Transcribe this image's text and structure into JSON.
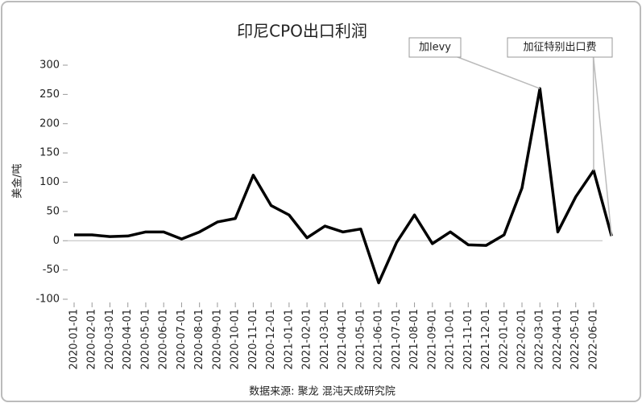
{
  "chart_data": {
    "type": "line",
    "title": "印尼CPO出口利润",
    "y_label": "美金/吨",
    "source": "数据来源: 聚龙 混沌天成研究院",
    "annotations": [
      "加levy",
      "加征特别出口费"
    ],
    "categories": [
      "2020-01-01",
      "2020-02-01",
      "2020-03-01",
      "2020-04-01",
      "2020-05-01",
      "2020-06-01",
      "2020-07-01",
      "2020-08-01",
      "2020-09-01",
      "2020-10-01",
      "2020-11-01",
      "2020-12-01",
      "2021-01-01",
      "2021-02-01",
      "2021-03-01",
      "2021-04-01",
      "2021-05-01",
      "2021-06-01",
      "2021-07-01",
      "2021-08-01",
      "2021-09-01",
      "2021-10-01",
      "2021-11-01",
      "2021-12-01",
      "2022-01-01",
      "2022-02-01",
      "2022-03-01",
      "2022-04-01",
      "2022-05-01",
      "2022-06-01",
      null
    ],
    "values": [
      10,
      10,
      7,
      8,
      15,
      15,
      3,
      15,
      32,
      38,
      112,
      60,
      44,
      5,
      25,
      15,
      20,
      -72,
      -3,
      44,
      -5,
      15,
      -7,
      -8,
      10,
      90,
      260,
      15,
      75,
      120,
      8
    ],
    "color": "#000000",
    "ylim": [
      -100,
      300
    ],
    "yticks": [
      -100,
      -50,
      0,
      50,
      100,
      150,
      200,
      250,
      300
    ]
  }
}
